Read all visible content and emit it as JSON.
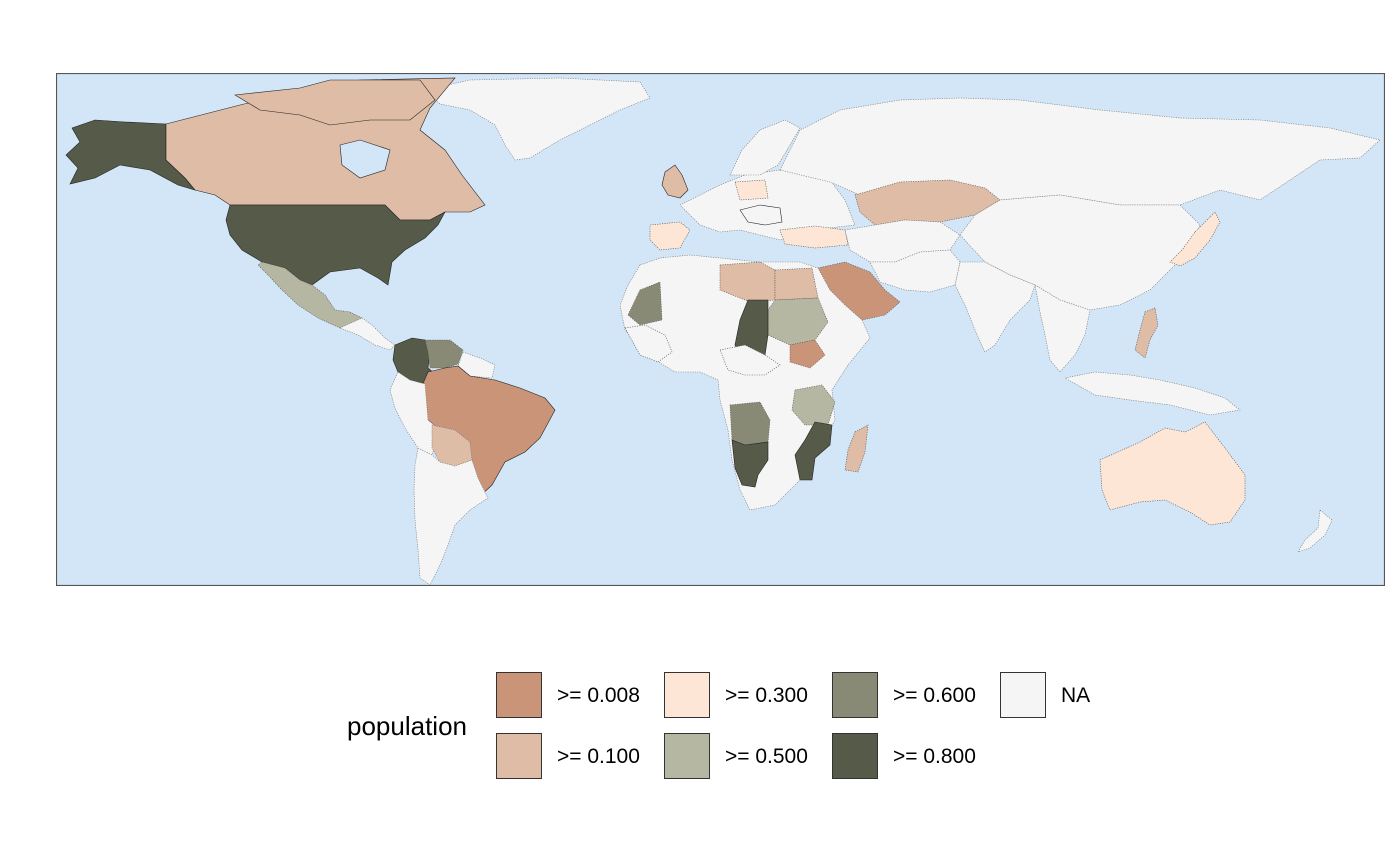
{
  "legend": {
    "title": "population",
    "items": [
      {
        "label": ">= 0.008",
        "color": "#c99477"
      },
      {
        "label": ">= 0.100",
        "color": "#dfbca6"
      },
      {
        "label": ">= 0.300",
        "color": "#fde6d5"
      },
      {
        "label": ">= 0.500",
        "color": "#b6b7a2"
      },
      {
        "label": ">= 0.600",
        "color": "#888a75"
      },
      {
        "label": ">= 0.800",
        "color": "#555a49"
      },
      {
        "label": "NA",
        "color": "#f5f5f5"
      }
    ]
  },
  "colors": {
    "ocean": "#d2e6f8",
    "panel_border": "#555555",
    "na_fill": "#f5f5f5"
  },
  "regions": [
    {
      "name": "Greenland",
      "class": "NA"
    },
    {
      "name": "Canada",
      "class": ">= 0.100"
    },
    {
      "name": "Alaska",
      "class": ">= 0.800"
    },
    {
      "name": "United States",
      "class": ">= 0.800"
    },
    {
      "name": "Mexico",
      "class": ">= 0.500"
    },
    {
      "name": "Colombia",
      "class": ">= 0.800"
    },
    {
      "name": "Venezuela",
      "class": ">= 0.600"
    },
    {
      "name": "Brazil",
      "class": ">= 0.008"
    },
    {
      "name": "Bolivia",
      "class": ">= 0.100"
    },
    {
      "name": "Russia",
      "class": "NA"
    },
    {
      "name": "Kazakhstan",
      "class": ">= 0.100"
    },
    {
      "name": "Saudi Arabia",
      "class": ">= 0.008"
    },
    {
      "name": "Libya",
      "class": ">= 0.100"
    },
    {
      "name": "Egypt",
      "class": ">= 0.100"
    },
    {
      "name": "Sudan",
      "class": ">= 0.500"
    },
    {
      "name": "Chad",
      "class": ">= 0.800"
    },
    {
      "name": "Mauritania",
      "class": ">= 0.600"
    },
    {
      "name": "Namibia",
      "class": ">= 0.800"
    },
    {
      "name": "Angola",
      "class": ">= 0.600"
    },
    {
      "name": "Mozambique",
      "class": ">= 0.800"
    },
    {
      "name": "Tanzania",
      "class": ">= 0.500"
    },
    {
      "name": "Madagascar",
      "class": ">= 0.100"
    },
    {
      "name": "Australia",
      "class": ">= 0.300"
    },
    {
      "name": "Spain",
      "class": ">= 0.300"
    },
    {
      "name": "Poland",
      "class": ">= 0.300"
    },
    {
      "name": "Turkey",
      "class": ">= 0.300"
    },
    {
      "name": "United Kingdom",
      "class": ">= 0.100"
    },
    {
      "name": "Japan",
      "class": ">= 0.300"
    },
    {
      "name": "Philippines",
      "class": ">= 0.100"
    },
    {
      "name": "South Sudan",
      "class": ">= 0.008"
    },
    {
      "name": "China",
      "class": "NA"
    },
    {
      "name": "India",
      "class": "NA"
    },
    {
      "name": "Argentina",
      "class": "NA"
    },
    {
      "name": "Peru",
      "class": "NA"
    },
    {
      "name": "Chile",
      "class": "NA"
    },
    {
      "name": "Algeria",
      "class": "NA"
    },
    {
      "name": "DR Congo",
      "class": "NA"
    },
    {
      "name": "South Africa",
      "class": "NA"
    },
    {
      "name": "Ethiopia",
      "class": "NA"
    },
    {
      "name": "Indonesia",
      "class": "NA"
    },
    {
      "name": "Scandinavia",
      "class": "NA"
    },
    {
      "name": "Iran",
      "class": "NA"
    },
    {
      "name": "Mongolia",
      "class": "NA"
    },
    {
      "name": "Southeast Asia",
      "class": "NA"
    },
    {
      "name": "New Zealand",
      "class": "NA"
    }
  ]
}
